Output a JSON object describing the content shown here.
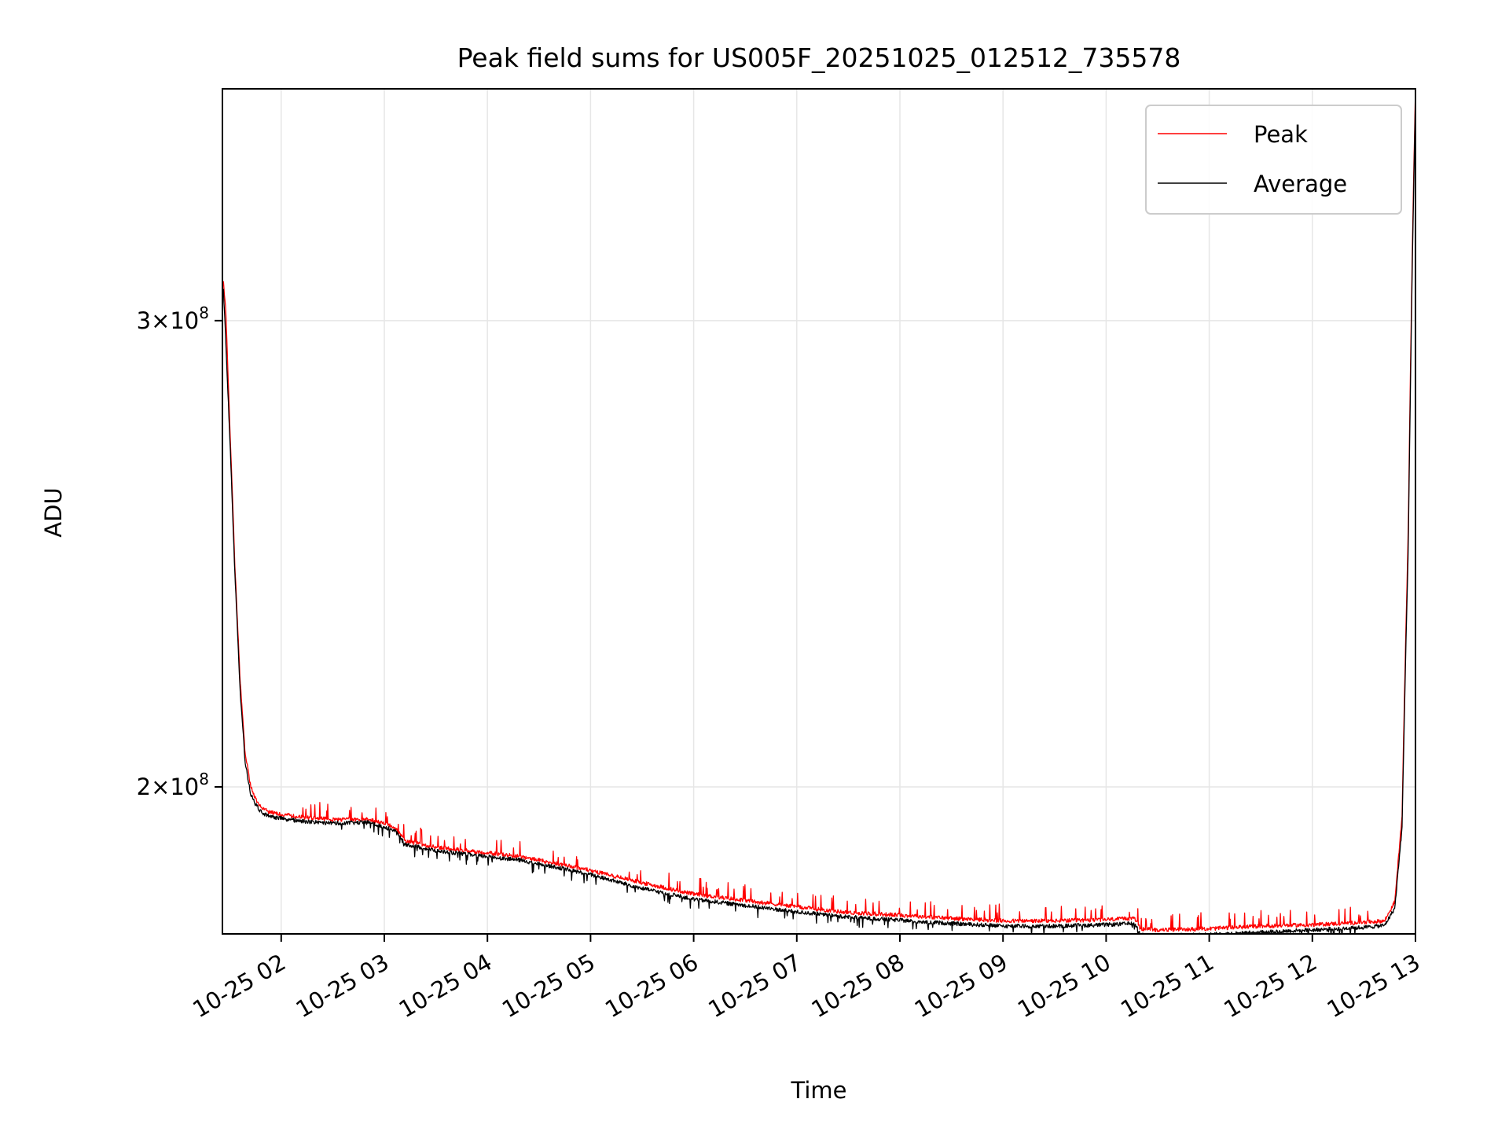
{
  "chart_data": {
    "type": "line",
    "title": "Peak field sums for US005F_20251025_012512_735578",
    "xlabel": "Time",
    "ylabel": "ADU",
    "y_scale": "log",
    "xlim_hours": [
      1.43,
      13.0
    ],
    "ylim": [
      176000000,
      367000000
    ],
    "grid": true,
    "x_ticks": [
      {
        "value": 2,
        "label": "10-25 02"
      },
      {
        "value": 3,
        "label": "10-25 03"
      },
      {
        "value": 4,
        "label": "10-25 04"
      },
      {
        "value": 5,
        "label": "10-25 05"
      },
      {
        "value": 6,
        "label": "10-25 06"
      },
      {
        "value": 7,
        "label": "10-25 07"
      },
      {
        "value": 8,
        "label": "10-25 08"
      },
      {
        "value": 9,
        "label": "10-25 09"
      },
      {
        "value": 10,
        "label": "10-25 10"
      },
      {
        "value": 11,
        "label": "10-25 11"
      },
      {
        "value": 12,
        "label": "10-25 12"
      },
      {
        "value": 13,
        "label": "10-25 13"
      }
    ],
    "y_ticks": [
      {
        "value": 300000000,
        "mantissa": "3",
        "exponent": "8"
      },
      {
        "value": 200000000,
        "mantissa": "2",
        "exponent": "8"
      }
    ],
    "legend": {
      "position": "top-right",
      "entries": [
        "Peak",
        "Average"
      ]
    },
    "series": [
      {
        "name": "Peak",
        "color": "#ff0000",
        "x": [
          1.44,
          1.46,
          1.5,
          1.55,
          1.6,
          1.65,
          1.7,
          1.75,
          1.8,
          1.85,
          1.9,
          2.0,
          2.2,
          2.5,
          2.85,
          3.1,
          3.2,
          3.5,
          3.9,
          4.3,
          4.7,
          5.0,
          5.5,
          6.0,
          6.5,
          7.0,
          7.5,
          8.0,
          8.5,
          9.0,
          9.5,
          10.0,
          10.28,
          10.33,
          10.5,
          11.0,
          11.5,
          12.0,
          12.5,
          12.7,
          12.8,
          12.87,
          12.93,
          12.97,
          13.0
        ],
        "values": [
          310000000,
          304000000,
          275000000,
          243000000,
          220000000,
          206000000,
          200500000,
          198000000,
          196600000,
          196000000,
          195600000,
          195300000,
          194800000,
          194400000,
          194400000,
          193200000,
          190800000,
          189800000,
          189000000,
          188300000,
          187000000,
          186000000,
          184000000,
          182200000,
          181200000,
          180200000,
          179300000,
          178900000,
          178400000,
          178000000,
          178000000,
          178200000,
          178400000,
          176800000,
          176600000,
          176800000,
          177200000,
          177400000,
          177800000,
          178000000,
          181000000,
          195000000,
          250000000,
          320000000,
          367000000
        ]
      },
      {
        "name": "Average",
        "color": "#000000",
        "x": [
          1.44,
          1.46,
          1.5,
          1.55,
          1.6,
          1.65,
          1.7,
          1.75,
          1.8,
          1.85,
          1.9,
          2.0,
          2.2,
          2.5,
          2.85,
          3.1,
          3.2,
          3.5,
          3.9,
          4.3,
          4.7,
          5.0,
          5.5,
          6.0,
          6.5,
          7.0,
          7.5,
          8.0,
          8.5,
          9.0,
          9.5,
          10.0,
          10.28,
          10.33,
          10.5,
          11.0,
          11.5,
          12.0,
          12.5,
          12.7,
          12.8,
          12.87,
          12.93,
          12.97,
          13.0
        ],
        "values": [
          308000000,
          296000000,
          272000000,
          241000000,
          218000000,
          204500000,
          199000000,
          197000000,
          195800000,
          195200000,
          194800000,
          194600000,
          194100000,
          193800000,
          193900000,
          192600000,
          190300000,
          189200000,
          188400000,
          187700000,
          186400000,
          185300000,
          183100000,
          181400000,
          180400000,
          179400000,
          178600000,
          178100000,
          177600000,
          177200000,
          177200000,
          177400000,
          177600000,
          175900000,
          175700000,
          175900000,
          176300000,
          176600000,
          177000000,
          177300000,
          180000000,
          193000000,
          246000000,
          316000000,
          365000000
        ]
      }
    ]
  }
}
